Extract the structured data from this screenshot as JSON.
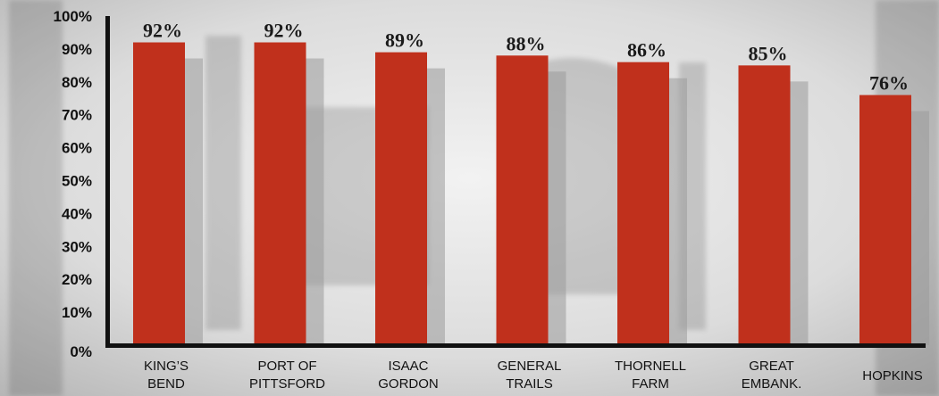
{
  "chart_data": {
    "type": "bar",
    "categories": [
      [
        "KING’S",
        "BEND"
      ],
      [
        "PORT OF",
        "PITTSFORD"
      ],
      [
        "ISAAC",
        "GORDON"
      ],
      [
        "GENERAL",
        "TRAILS"
      ],
      [
        "THORNELL",
        "FARM"
      ],
      [
        "GREAT",
        "EMBANK."
      ],
      [
        "HOPKINS"
      ]
    ],
    "values": [
      92,
      92,
      89,
      88,
      86,
      85,
      76
    ],
    "data_labels": [
      "92%",
      "92%",
      "89%",
      "88%",
      "86%",
      "85%",
      "76%"
    ],
    "yticks": [
      "0%",
      "10%",
      "20%",
      "30%",
      "40%",
      "50%",
      "60%",
      "70%",
      "80%",
      "90%",
      "100%"
    ],
    "ylim": [
      0,
      100
    ],
    "bar_color": "#c0301c",
    "shadow_color": "#9a9a9a",
    "axis_color": "#111111",
    "grid": false
  }
}
